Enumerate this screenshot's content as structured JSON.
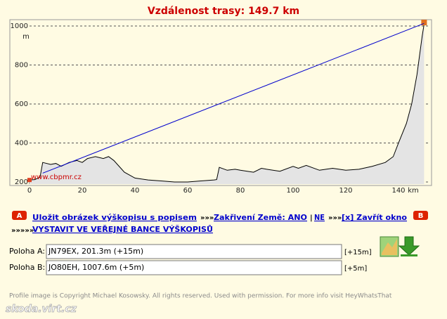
{
  "chart_data": {
    "type": "area",
    "title": "Vzdálenost trasy: 149.7 km",
    "y_unit": "m",
    "x_unit": "km",
    "watermark": "www.cbpmr.cz",
    "xlim": [
      0,
      152
    ],
    "ylim": [
      189,
      1025
    ],
    "xticks": [
      0,
      20,
      40,
      60,
      80,
      100,
      120,
      140
    ],
    "yticks": [
      200,
      400,
      600,
      800,
      1000
    ],
    "grid": true,
    "series": [
      {
        "color": "#e4e4e4",
        "x": [
          0,
          2,
          4,
          5,
          8,
          10,
          12,
          15,
          18,
          20,
          22,
          25,
          28,
          30,
          32,
          34,
          36,
          40,
          45,
          50,
          55,
          60,
          65,
          70,
          71,
          72,
          75,
          78,
          80,
          85,
          88,
          90,
          95,
          100,
          102,
          105,
          110,
          115,
          120,
          125,
          130,
          135,
          138,
          140,
          143,
          145,
          147,
          148,
          149,
          149.7
        ],
        "values": [
          210,
          212,
          225,
          300,
          290,
          295,
          280,
          300,
          310,
          300,
          320,
          330,
          320,
          330,
          310,
          280,
          250,
          220,
          210,
          205,
          200,
          200,
          205,
          210,
          212,
          275,
          260,
          265,
          260,
          250,
          270,
          265,
          255,
          280,
          270,
          285,
          260,
          270,
          260,
          265,
          280,
          300,
          330,
          400,
          500,
          600,
          750,
          850,
          950,
          1008
        ]
      },
      {
        "color": "#0000cc",
        "x": [
          5,
          149.7
        ],
        "values": [
          245,
          1013
        ]
      }
    ]
  },
  "ui": {
    "badge_a": "A",
    "badge_b": "B",
    "links": [
      "Uložit obrázek výškopisu s popisem",
      "Zakřivení Země: ANO",
      "NE",
      "[x] Zavřít okno",
      "VYSTAVIT VE VEŘEJNÉ BANCE VÝŠKOPISŮ"
    ],
    "separators": [
      "»»»",
      "|",
      "»»»",
      "»»»»»"
    ],
    "point_a": {
      "label": "Poloha A:",
      "value": "JN79EX, 201.3m (+15m)",
      "offset": "[+15m]"
    },
    "point_b": {
      "label": "Poloha B:",
      "value": "JO80EH, 1007.6m (+5m)",
      "offset": "[+5m]"
    },
    "footer": "Profile image is Copyright Michael Kosowsky. All rights reserved. Used with permission. For more info visit HeyWhatsThat",
    "logo": "skoda.virt.cz"
  }
}
